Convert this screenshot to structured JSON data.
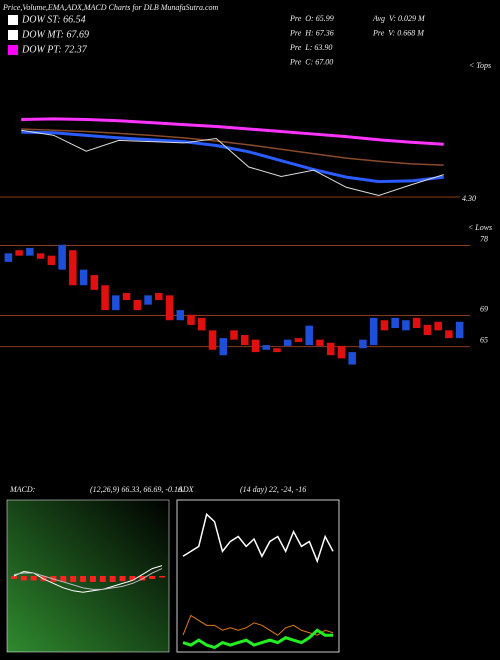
{
  "title": "Price,Volume,EMA,ADX,MACD Charts for DLB MunafaSutra.com",
  "legend": [
    {
      "label": "DOW ST: 66.54",
      "color": "#ffffff"
    },
    {
      "label": "DOW MT: 67.69",
      "color": "#ffffff"
    },
    {
      "label": "DOW PT: 72.37",
      "color": "#ff00ff"
    }
  ],
  "stats": [
    "Pre  O: 65.99",
    "Pre  H: 67.36",
    "Pre  L: 63.90",
    "Pre  C: 67.00",
    "Avg  V: 0.029 M",
    "Pre  V: 0.668 M"
  ],
  "chart_data": [
    {
      "type": "line",
      "annotations": [
        "< Tops",
        "4.30"
      ],
      "ylim": [
        66,
        81
      ],
      "series": [
        {
          "color": "#ff33ff",
          "width": 3,
          "values": [
            79.5,
            79.6,
            79.5,
            79.3,
            79.0,
            78.7,
            78.4,
            78.0,
            77.6,
            77.2,
            76.8,
            76.3,
            75.9,
            75.6
          ]
        },
        {
          "color": "#8b4a2a",
          "width": 1.5,
          "values": [
            78.0,
            77.8,
            77.6,
            77.3,
            77.0,
            76.6,
            76.1,
            75.5,
            74.8,
            74.1,
            73.4,
            72.9,
            72.5,
            72.3
          ]
        },
        {
          "color": "#2a5cff",
          "width": 3,
          "values": [
            77.5,
            77.4,
            77.0,
            76.6,
            76.3,
            76.0,
            75.4,
            74.4,
            73.0,
            71.6,
            70.4,
            69.7,
            69.8,
            70.4
          ]
        },
        {
          "color": "#dddddd",
          "width": 1,
          "values": [
            77.8,
            77.0,
            74.5,
            76.2,
            76.0,
            75.8,
            76.5,
            72.0,
            70.5,
            71.5,
            68.8,
            67.5,
            69.2,
            70.8
          ]
        }
      ]
    },
    {
      "type": "candlestick",
      "annotations": [
        "< Lows"
      ],
      "ylim": [
        62,
        80
      ],
      "yticks": [
        65,
        69,
        78
      ],
      "up_color": "#1e4fd8",
      "down_color": "#e01010",
      "open": [
        75.9,
        77.4,
        76.7,
        77.0,
        76.7,
        74.9,
        77.4,
        72.9,
        74.2,
        72.9,
        69.7,
        71.9,
        71.0,
        70.4,
        71.9,
        71.6,
        68.4,
        69.1,
        68.7,
        67.1,
        63.9,
        67.1,
        66.5,
        65.9,
        64.6,
        64.8,
        65.1,
        66.1,
        65.2,
        65.9,
        65.5,
        65.1,
        62.7,
        64.8,
        65.2,
        68.4,
        67.4,
        67.1,
        68.7,
        67.8,
        68.2,
        67.1,
        66.1
      ],
      "close": [
        77.0,
        76.7,
        77.7,
        76.3,
        75.5,
        78.1,
        72.9,
        74.9,
        72.3,
        69.7,
        71.6,
        71.0,
        69.7,
        71.6,
        71.0,
        68.4,
        69.7,
        67.8,
        67.1,
        64.6,
        66.1,
        65.9,
        65.2,
        64.3,
        65.2,
        64.3,
        65.9,
        65.6,
        67.7,
        65.1,
        63.9,
        63.5,
        64.3,
        65.9,
        68.7,
        67.1,
        68.7,
        68.4,
        67.4,
        66.5,
        67.1,
        66.1,
        68.2
      ]
    },
    {
      "type": "line",
      "title": "MACD:",
      "subtitle": "(12,26,9) 66.33, 66.69, -0.16",
      "ylim": [
        -5,
        5
      ],
      "series": [
        {
          "kind": "bar",
          "color": "#ff2020",
          "values": [
            -0.2,
            -0.3,
            -0.3,
            -0.35,
            -0.4,
            -0.4,
            -0.4,
            -0.4,
            -0.4,
            -0.4,
            -0.4,
            -0.35,
            -0.3,
            -0.3,
            -0.2,
            -0.1
          ]
        },
        {
          "color": "#ffffff",
          "width": 1,
          "values": [
            0,
            0.3,
            0.2,
            -0.2,
            -0.5,
            -0.8,
            -1.0,
            -1.1,
            -1.0,
            -0.9,
            -0.7,
            -0.5,
            -0.3,
            0.1,
            0.5,
            0.7
          ]
        },
        {
          "color": "#bbbbbb",
          "width": 1,
          "values": [
            0.1,
            0.2,
            0.2,
            0,
            -0.2,
            -0.4,
            -0.6,
            -0.8,
            -0.9,
            -0.9,
            -0.8,
            -0.7,
            -0.5,
            -0.2,
            0.2,
            0.5
          ]
        }
      ]
    },
    {
      "type": "line",
      "title": "ADX",
      "subtitle": "(14 day) 22, -24, -16",
      "ylim": [
        0,
        60
      ],
      "series": [
        {
          "color": "#ffffff",
          "width": 1.5,
          "values": [
            38,
            40,
            42,
            55,
            52,
            40,
            44,
            46,
            42,
            45,
            38,
            44,
            46,
            40,
            48,
            42,
            44,
            36,
            46,
            40
          ]
        },
        {
          "color": "#e07a10",
          "width": 1,
          "values": [
            6,
            14,
            12,
            10,
            10,
            8,
            9,
            8,
            9,
            11,
            10,
            8,
            6,
            9,
            10,
            8,
            7,
            6,
            8,
            7
          ]
        },
        {
          "color": "#22ee22",
          "width": 3,
          "values": [
            3,
            2,
            4,
            2,
            1,
            3,
            2,
            3,
            4,
            2,
            3,
            4,
            3,
            5,
            4,
            3,
            5,
            8,
            6,
            6
          ]
        }
      ]
    }
  ]
}
